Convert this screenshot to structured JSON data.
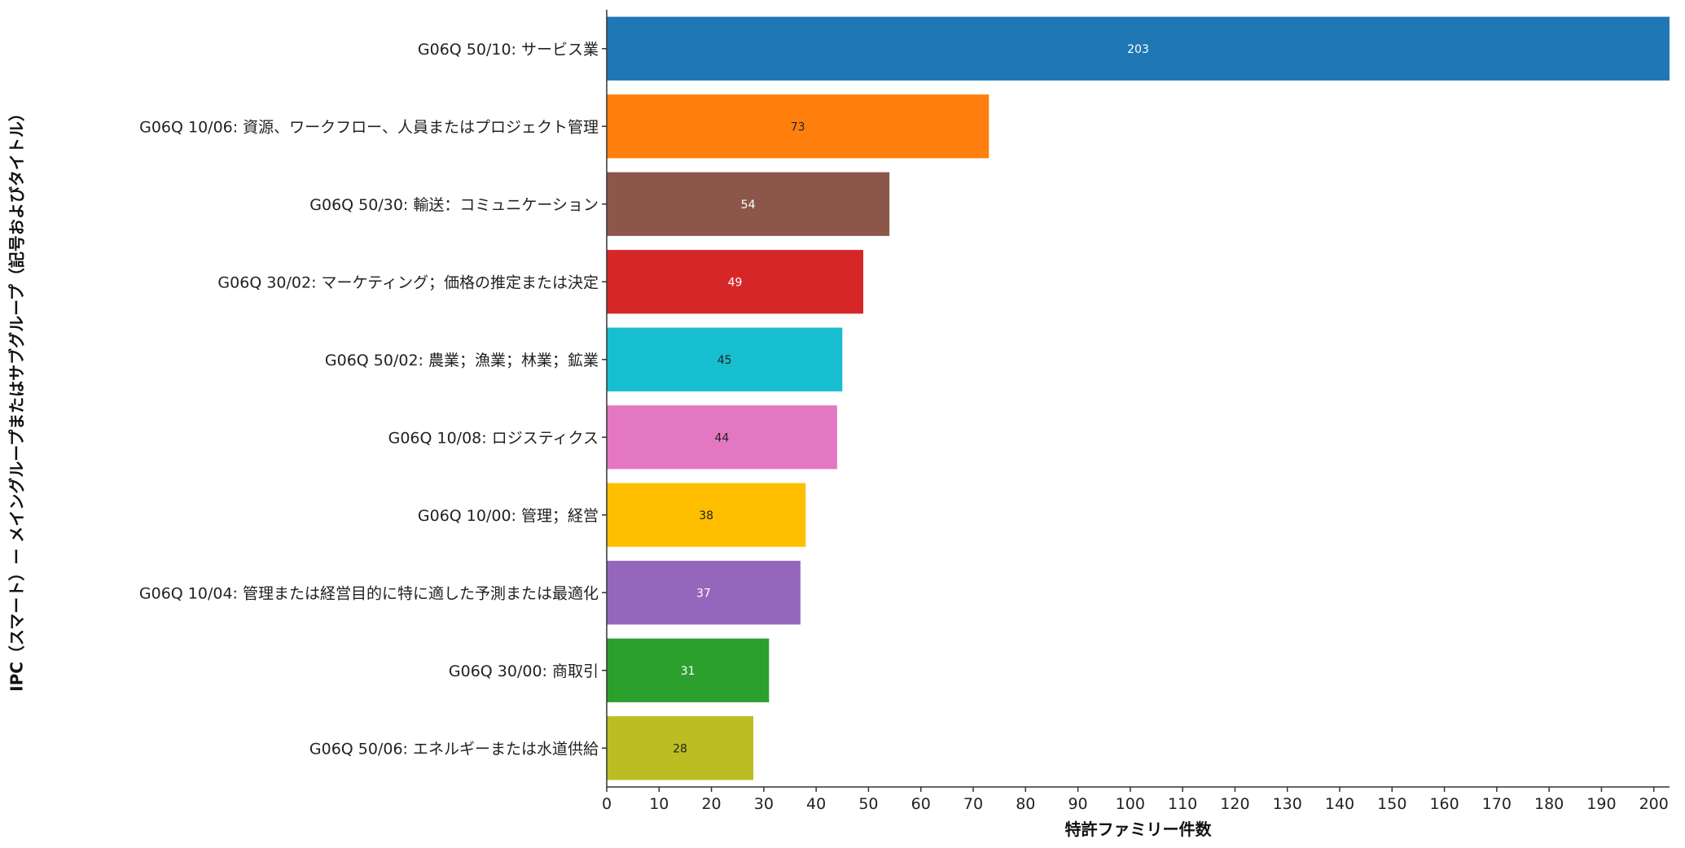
{
  "chart_data": {
    "type": "bar",
    "orientation": "horizontal",
    "xlabel": "特許ファミリー件数",
    "ylabel": "IPC（スマート）ー メイングループまたはサブグループ（記号およびタイトル）",
    "xlim": [
      0,
      203
    ],
    "xticks": [
      0,
      10,
      20,
      30,
      40,
      50,
      60,
      70,
      80,
      90,
      100,
      110,
      120,
      130,
      140,
      150,
      160,
      170,
      180,
      190,
      200
    ],
    "grid": false,
    "legend": "none",
    "categories": [
      "G06Q 50/10: サービス業",
      "G06Q 10/06: 資源、ワークフロー、人員またはプロジェクト管理",
      "G06Q 50/30: 輸送：コミュニケーション",
      "G06Q 30/02: マーケティング；価格の推定または決定",
      "G06Q 50/02: 農業；漁業；林業；鉱業",
      "G06Q 10/08: ロジスティクス",
      "G06Q 10/00: 管理；経営",
      "G06Q 10/04: 管理または経営目的に特に適した予測または最適化",
      "G06Q 30/00: 商取引",
      "G06Q 50/06: エネルギーまたは水道供給"
    ],
    "values": [
      203,
      73,
      54,
      49,
      45,
      44,
      38,
      37,
      31,
      28
    ],
    "value_labels": [
      "203",
      "73",
      "54",
      "49",
      "45",
      "44",
      "38",
      "37",
      "31",
      "28"
    ],
    "colors": [
      "#1f77b4",
      "#ff7f0e",
      "#8c564b",
      "#d62728",
      "#17becf",
      "#e377c2",
      "#ffbf00",
      "#9467bd",
      "#2ca02c",
      "#bcbd22"
    ],
    "label_colors": [
      "#ffffff",
      "#222222",
      "#ffffff",
      "#ffffff",
      "#222222",
      "#222222",
      "#222222",
      "#ffffff",
      "#ffffff",
      "#222222"
    ]
  }
}
